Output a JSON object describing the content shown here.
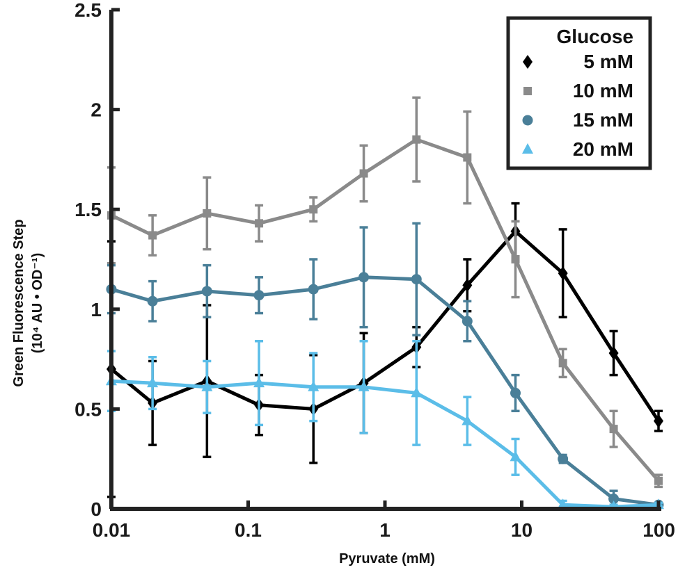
{
  "chart_data": {
    "type": "line",
    "title": "",
    "xlabel": "Pyruvate (mM)",
    "ylabel": "Green Fluorescence Step",
    "ylabel_sub": "(10⁴ AU • OD⁻¹)",
    "xscale": "log",
    "xlim": [
      0.01,
      100
    ],
    "ylim": [
      0,
      2.5
    ],
    "x_ticks": [
      0.01,
      0.1,
      1,
      10,
      100
    ],
    "x_tick_labels": [
      "0.01",
      "0.1",
      "1",
      "10",
      "100"
    ],
    "y_ticks": [
      0,
      0.5,
      1,
      1.5,
      2,
      2.5
    ],
    "y_tick_labels": [
      "0",
      "0.5",
      "1",
      "1.5",
      "2",
      "2.5"
    ],
    "legend": {
      "title": "Glucose",
      "position": "top-right"
    },
    "x": [
      0.01,
      0.02,
      0.05,
      0.12,
      0.3,
      0.7,
      1.7,
      4,
      9,
      20,
      47,
      100
    ],
    "series": [
      {
        "name": "5 mM",
        "color": "#000000",
        "marker": "diamond",
        "values": [
          0.7,
          0.53,
          0.64,
          0.52,
          0.5,
          0.63,
          0.81,
          1.12,
          1.39,
          1.18,
          0.78,
          0.44
        ],
        "errors": [
          0.64,
          0.21,
          0.38,
          0.15,
          0.27,
          0.25,
          0.1,
          0.13,
          0.14,
          0.22,
          0.11,
          0.05
        ]
      },
      {
        "name": "10 mM",
        "color": "#8a8a8a",
        "marker": "square",
        "values": [
          1.47,
          1.37,
          1.48,
          1.43,
          1.5,
          1.68,
          1.85,
          1.76,
          1.25,
          0.73,
          0.4,
          0.14
        ],
        "errors": [
          0.24,
          0.1,
          0.18,
          0.09,
          0.06,
          0.14,
          0.21,
          0.23,
          0.19,
          0.07,
          0.09,
          0.03
        ]
      },
      {
        "name": "15 mM",
        "color": "#4a7f98",
        "marker": "circle",
        "values": [
          1.1,
          1.04,
          1.09,
          1.07,
          1.1,
          1.16,
          1.15,
          0.94,
          0.58,
          0.25,
          0.05,
          0.02
        ],
        "errors": [
          0.12,
          0.1,
          0.13,
          0.09,
          0.15,
          0.25,
          0.28,
          0.1,
          0.09,
          0.02,
          0.04,
          0.01
        ]
      },
      {
        "name": "20 mM",
        "color": "#5bbde8",
        "marker": "triangle",
        "values": [
          0.64,
          0.63,
          0.61,
          0.63,
          0.61,
          0.61,
          0.58,
          0.44,
          0.26,
          0.02,
          0.01,
          0.02
        ],
        "errors": [
          0.15,
          0.13,
          0.13,
          0.21,
          0.17,
          0.23,
          0.26,
          0.12,
          0.09,
          0.02,
          0.01,
          0.01
        ]
      }
    ]
  }
}
